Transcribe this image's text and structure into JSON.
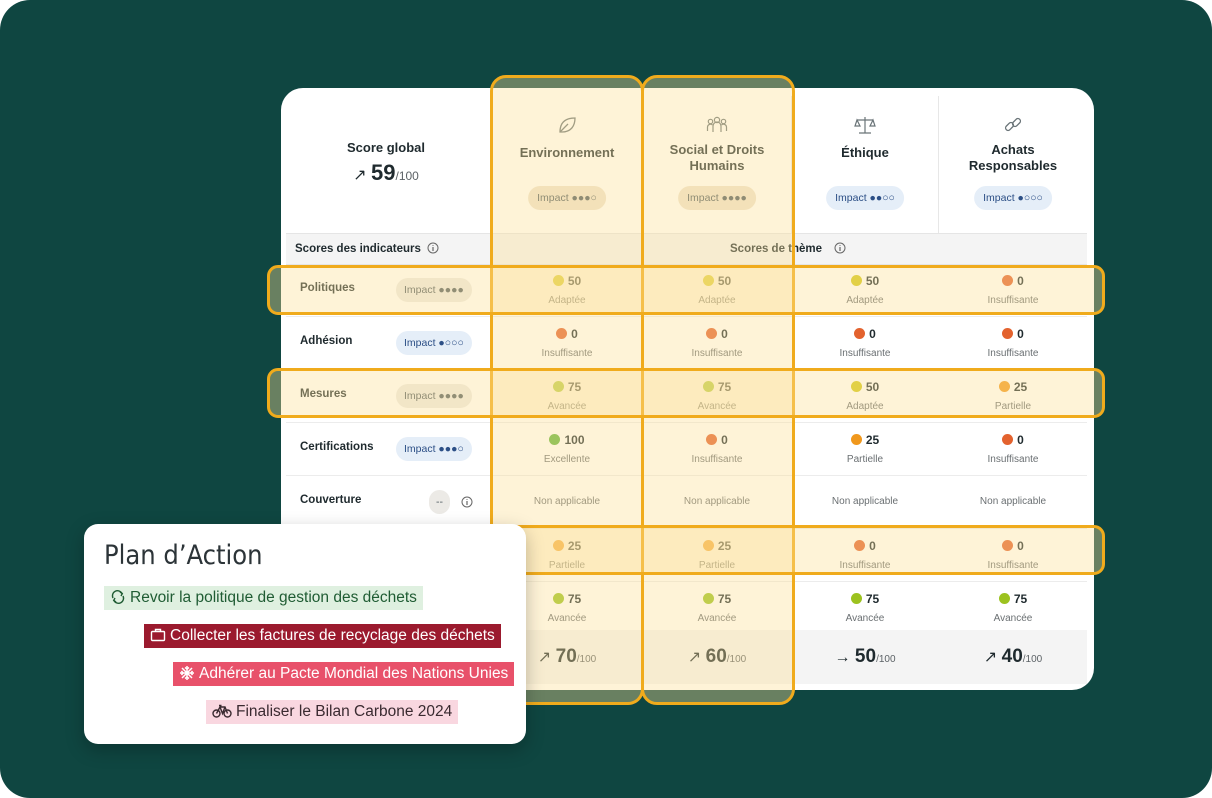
{
  "score_global": {
    "title": "Score global",
    "arrow": "↗",
    "value": "59",
    "max": "/100"
  },
  "themes": [
    {
      "name_l1": "Environnement",
      "name_l2": "",
      "impact_label": "Impact ●●●○"
    },
    {
      "name_l1": "Social et Droits",
      "name_l2": "Humains",
      "impact_label": "Impact ●●●●"
    },
    {
      "name_l1": "Éthique",
      "name_l2": "",
      "impact_label": "Impact ●●○○"
    },
    {
      "name_l1": "Achats",
      "name_l2": "Responsables",
      "impact_label": "Impact ●○○○"
    }
  ],
  "subheader": {
    "left": "Scores des indicateurs",
    "center": "Scores de thème"
  },
  "rows": [
    {
      "label": "Politiques",
      "impact": "Impact ●●●●",
      "cells": [
        {
          "value": "50",
          "label": "Adaptée",
          "color": "#d2c716"
        },
        {
          "value": "50",
          "label": "Adaptée",
          "color": "#d2c716"
        },
        {
          "value": "50",
          "label": "Adaptée",
          "color": "#d2c716"
        },
        {
          "value": "0",
          "label": "Insuffisante",
          "color": "#e3622e"
        }
      ]
    },
    {
      "label": "Adhésion",
      "impact": "Impact ●○○○",
      "cells": [
        {
          "value": "0",
          "label": "Insuffisante",
          "color": "#e3622e"
        },
        {
          "value": "0",
          "label": "Insuffisante",
          "color": "#e3622e"
        },
        {
          "value": "0",
          "label": "Insuffisante",
          "color": "#e3622e"
        },
        {
          "value": "0",
          "label": "Insuffisante",
          "color": "#e3622e"
        }
      ]
    },
    {
      "label": "Mesures",
      "impact": "Impact ●●●●",
      "cells": [
        {
          "value": "75",
          "label": "Avancée",
          "color": "#9cc21f"
        },
        {
          "value": "75",
          "label": "Avancée",
          "color": "#9cc21f"
        },
        {
          "value": "50",
          "label": "Adaptée",
          "color": "#d2c716"
        },
        {
          "value": "25",
          "label": "Partielle",
          "color": "#f0981d"
        }
      ]
    },
    {
      "label": "Certifications",
      "impact": "Impact ●●●○",
      "cells": [
        {
          "value": "100",
          "label": "Excellente",
          "color": "#5fb43a"
        },
        {
          "value": "0",
          "label": "Insuffisante",
          "color": "#e3622e"
        },
        {
          "value": "25",
          "label": "Partielle",
          "color": "#f0981d"
        },
        {
          "value": "0",
          "label": "Insuffisante",
          "color": "#e3622e"
        }
      ]
    },
    {
      "label": "Couverture",
      "impact": "--",
      "cells": [
        {
          "na": "Non applicable"
        },
        {
          "na": "Non applicable"
        },
        {
          "na": "Non applicable"
        },
        {
          "na": "Non applicable"
        }
      ]
    },
    {
      "label": "",
      "impact": "",
      "cells": [
        {
          "value": "25",
          "label": "Partielle",
          "color": "#f0981d"
        },
        {
          "value": "25",
          "label": "Partielle",
          "color": "#f0981d"
        },
        {
          "value": "0",
          "label": "Insuffisante",
          "color": "#e3622e"
        },
        {
          "value": "0",
          "label": "Insuffisante",
          "color": "#e3622e"
        }
      ]
    },
    {
      "label": "",
      "impact": "",
      "cells": [
        {
          "value": "75",
          "label": "Avancée",
          "color": "#9cc21f"
        },
        {
          "value": "75",
          "label": "Avancée",
          "color": "#9cc21f"
        },
        {
          "value": "75",
          "label": "Avancée",
          "color": "#9cc21f"
        },
        {
          "value": "75",
          "label": "Avancée",
          "color": "#9cc21f"
        }
      ]
    }
  ],
  "totals": [
    {
      "arrow": "↗",
      "value": "70",
      "max": "/100"
    },
    {
      "arrow": "↗",
      "value": "60",
      "max": "/100"
    },
    {
      "arrow": "→",
      "value": "50",
      "max": "/100"
    },
    {
      "arrow": "↗",
      "value": "40",
      "max": "/100"
    }
  ],
  "plan": {
    "title": "Plan d’Action",
    "actions": [
      {
        "text": "Revoir la politique  de gestion des déchets",
        "icon": "recycle-icon",
        "bg": "#dff0e0",
        "fg": "#1f5c33"
      },
      {
        "text": "Collecter les factures de recyclage des déchets",
        "icon": "briefcase-icon",
        "bg": "#9b1a2e",
        "fg": "#ffffff"
      },
      {
        "text": "Adhérer au Pacte Mondial des Nations Unies",
        "icon": "snowflake-icon",
        "bg": "#e8516a",
        "fg": "#ffffff"
      },
      {
        "text": "Finaliser le Bilan Carbone 2024",
        "icon": "bicycle-icon",
        "bg": "#f9d7e0",
        "fg": "#3a2a30"
      }
    ]
  },
  "colors": {
    "background": "#0f4641",
    "highlight": "#f0ab1c"
  }
}
